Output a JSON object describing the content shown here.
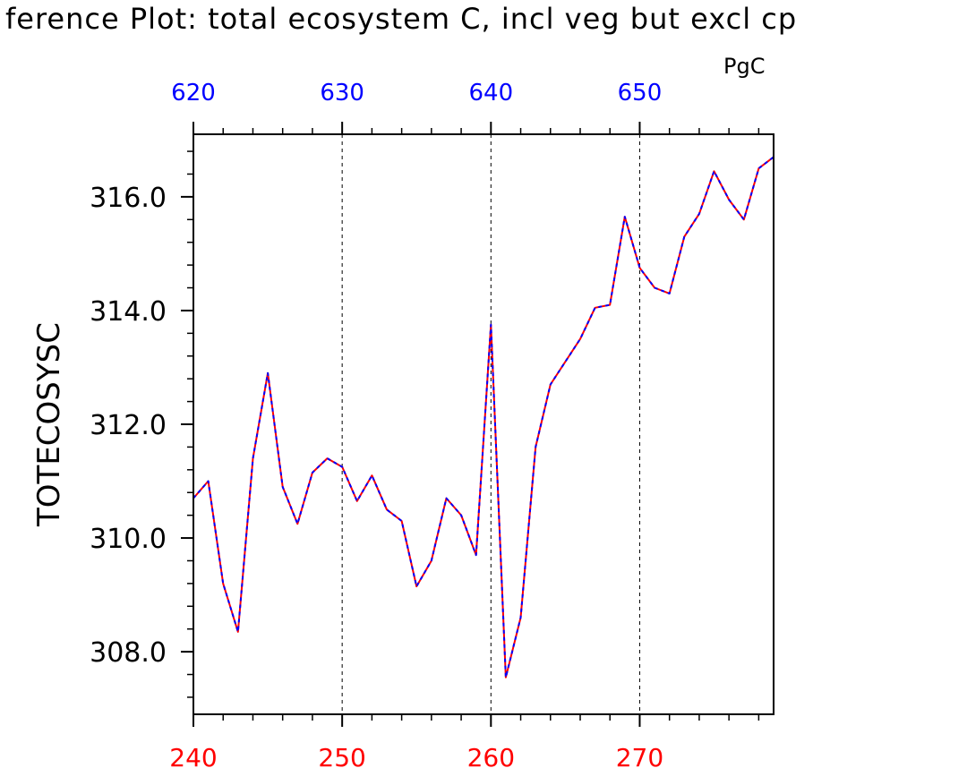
{
  "chart_data": {
    "type": "line",
    "title": "ference Plot: total ecosystem C, incl veg but excl cp",
    "units": "PgC",
    "ylabel": "TOTECOSYSC",
    "ylim": [
      306.9,
      317.1
    ],
    "yticks": [
      308.0,
      310.0,
      312.0,
      314.0,
      316.0
    ],
    "ytick_labels": [
      "308.0",
      "310.0",
      "312.0",
      "314.0",
      "316.0"
    ],
    "xlim_bottom": [
      240,
      279
    ],
    "xticks_bottom": [
      240,
      250,
      260,
      270
    ],
    "xlim_top": [
      620,
      659
    ],
    "xticks_top": [
      620,
      630,
      640,
      650
    ],
    "bottom_axis_color": "#ff0000",
    "top_axis_color": "#0000ff",
    "grid": "vertical dashed at 250, 260, 270",
    "series": [
      {
        "color": "#ff0000",
        "style": "solid",
        "x": [
          240,
          241,
          242,
          243,
          244,
          245,
          246,
          247,
          248,
          249,
          250,
          251,
          252,
          253,
          254,
          255,
          256,
          257,
          258,
          259,
          260,
          261,
          262,
          263,
          264,
          265,
          266,
          267,
          268,
          269,
          270,
          271,
          272,
          273,
          274,
          275,
          276,
          277,
          278,
          279
        ],
        "y": [
          310.7,
          311.0,
          309.2,
          308.35,
          311.4,
          312.9,
          310.9,
          310.25,
          311.15,
          311.4,
          311.25,
          310.65,
          311.1,
          310.5,
          310.3,
          309.15,
          309.6,
          310.7,
          310.4,
          309.7,
          313.75,
          307.55,
          308.6,
          311.6,
          312.7,
          313.1,
          313.5,
          314.05,
          314.1,
          315.65,
          314.75,
          314.4,
          314.3,
          315.3,
          315.7,
          316.45,
          315.95,
          315.6,
          316.5,
          316.7
        ]
      },
      {
        "color": "#0000ff",
        "style": "dashed",
        "x": [
          240,
          241,
          242,
          243,
          244,
          245,
          246,
          247,
          248,
          249,
          250,
          251,
          252,
          253,
          254,
          255,
          256,
          257,
          258,
          259,
          260,
          261,
          262,
          263,
          264,
          265,
          266,
          267,
          268,
          269,
          270,
          271,
          272,
          273,
          274,
          275,
          276,
          277,
          278,
          279
        ],
        "y": [
          310.7,
          311.0,
          309.2,
          308.35,
          311.4,
          312.9,
          310.9,
          310.25,
          311.15,
          311.4,
          311.25,
          310.65,
          311.1,
          310.5,
          310.3,
          309.15,
          309.6,
          310.7,
          310.4,
          309.7,
          313.75,
          307.55,
          308.6,
          311.6,
          312.7,
          313.1,
          313.5,
          314.05,
          314.1,
          315.65,
          314.75,
          314.4,
          314.3,
          315.3,
          315.7,
          316.45,
          315.95,
          315.6,
          316.5,
          316.7
        ]
      }
    ]
  }
}
